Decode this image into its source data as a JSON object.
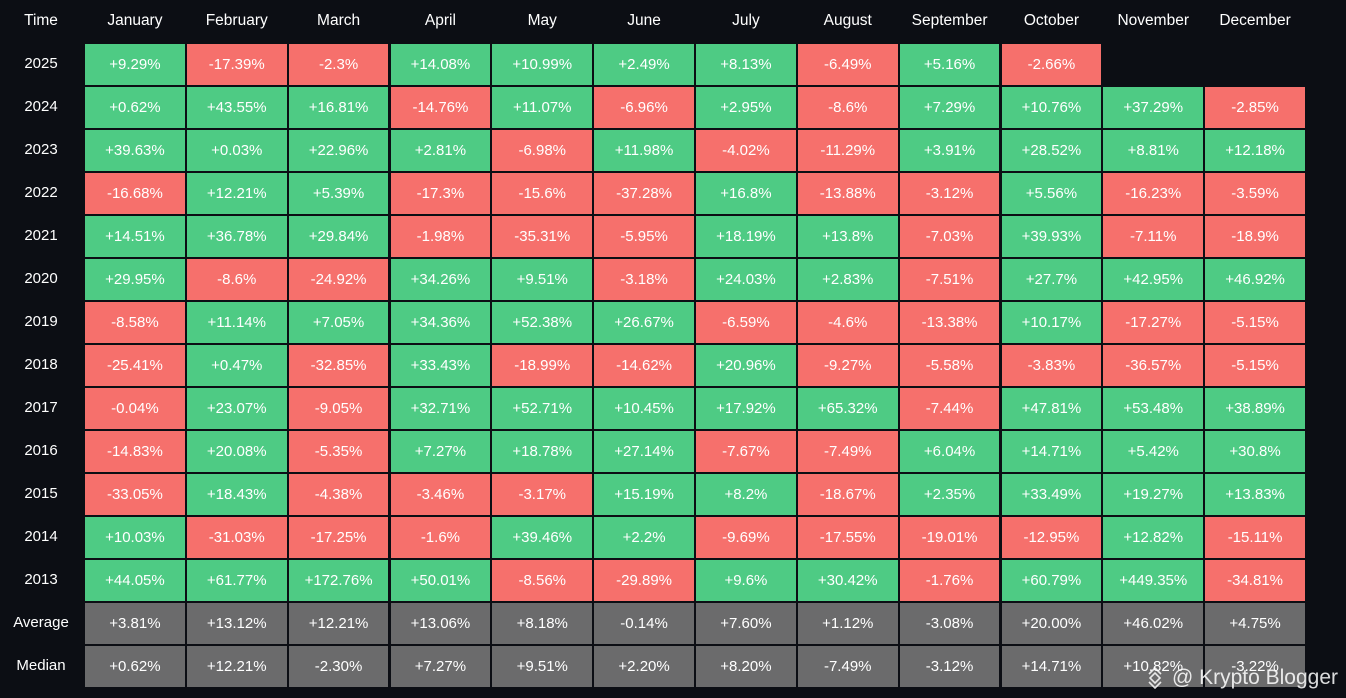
{
  "table": {
    "header": [
      "Time",
      "January",
      "February",
      "March",
      "April",
      "May",
      "June",
      "July",
      "August",
      "September",
      "October",
      "November",
      "December"
    ],
    "rows": [
      [
        "2025",
        "+9.29%",
        "-17.39%",
        "-2.3%",
        "+14.08%",
        "+10.99%",
        "+2.49%",
        "+8.13%",
        "-6.49%",
        "+5.16%",
        "-2.66%"
      ],
      [
        "2024",
        "+0.62%",
        "+43.55%",
        "+16.81%",
        "-14.76%",
        "+11.07%",
        "-6.96%",
        "+2.95%",
        "-8.6%",
        "+7.29%",
        "+10.76%",
        "+37.29%",
        "-2.85%"
      ],
      [
        "2023",
        "+39.63%",
        "+0.03%",
        "+22.96%",
        "+2.81%",
        "-6.98%",
        "+11.98%",
        "-4.02%",
        "-11.29%",
        "+3.91%",
        "+28.52%",
        "+8.81%",
        "+12.18%"
      ],
      [
        "2022",
        "-16.68%",
        "+12.21%",
        "+5.39%",
        "-17.3%",
        "-15.6%",
        "-37.28%",
        "+16.8%",
        "-13.88%",
        "-3.12%",
        "+5.56%",
        "-16.23%",
        "-3.59%"
      ],
      [
        "2021",
        "+14.51%",
        "+36.78%",
        "+29.84%",
        "-1.98%",
        "-35.31%",
        "-5.95%",
        "+18.19%",
        "+13.8%",
        "-7.03%",
        "+39.93%",
        "-7.11%",
        "-18.9%"
      ],
      [
        "2020",
        "+29.95%",
        "-8.6%",
        "-24.92%",
        "+34.26%",
        "+9.51%",
        "-3.18%",
        "+24.03%",
        "+2.83%",
        "-7.51%",
        "+27.7%",
        "+42.95%",
        "+46.92%"
      ],
      [
        "2019",
        "-8.58%",
        "+11.14%",
        "+7.05%",
        "+34.36%",
        "+52.38%",
        "+26.67%",
        "-6.59%",
        "-4.6%",
        "-13.38%",
        "+10.17%",
        "-17.27%",
        "-5.15%"
      ],
      [
        "2018",
        "-25.41%",
        "+0.47%",
        "-32.85%",
        "+33.43%",
        "-18.99%",
        "-14.62%",
        "+20.96%",
        "-9.27%",
        "-5.58%",
        "-3.83%",
        "-36.57%",
        "-5.15%"
      ],
      [
        "2017",
        "-0.04%",
        "+23.07%",
        "-9.05%",
        "+32.71%",
        "+52.71%",
        "+10.45%",
        "+17.92%",
        "+65.32%",
        "-7.44%",
        "+47.81%",
        "+53.48%",
        "+38.89%"
      ],
      [
        "2016",
        "-14.83%",
        "+20.08%",
        "-5.35%",
        "+7.27%",
        "+18.78%",
        "+27.14%",
        "-7.67%",
        "-7.49%",
        "+6.04%",
        "+14.71%",
        "+5.42%",
        "+30.8%"
      ],
      [
        "2015",
        "-33.05%",
        "+18.43%",
        "-4.38%",
        "-3.46%",
        "-3.17%",
        "+15.19%",
        "+8.2%",
        "-18.67%",
        "+2.35%",
        "+33.49%",
        "+19.27%",
        "+13.83%"
      ],
      [
        "2014",
        "+10.03%",
        "-31.03%",
        "-17.25%",
        "-1.6%",
        "+39.46%",
        "+2.2%",
        "-9.69%",
        "-17.55%",
        "-19.01%",
        "-12.95%",
        "+12.82%",
        "-15.11%"
      ],
      [
        "2013",
        "+44.05%",
        "+61.77%",
        "+172.76%",
        "+50.01%",
        "-8.56%",
        "-29.89%",
        "+9.6%",
        "+30.42%",
        "-1.76%",
        "+60.79%",
        "+449.35%",
        "-34.81%"
      ]
    ],
    "summary_rows": [
      [
        "Average",
        "+3.81%",
        "+13.12%",
        "+12.21%",
        "+13.06%",
        "+8.18%",
        "-0.14%",
        "+7.60%",
        "+1.12%",
        "-3.08%",
        "+20.00%",
        "+46.02%",
        "+4.75%"
      ],
      [
        "Median",
        "+0.62%",
        "+12.21%",
        "-2.30%",
        "+7.27%",
        "+9.51%",
        "+2.20%",
        "+8.20%",
        "-7.49%",
        "-3.12%",
        "+14.71%",
        "+10.82%",
        "-3.22%"
      ]
    ],
    "watermark": "@ Krypto Blogger"
  }
}
